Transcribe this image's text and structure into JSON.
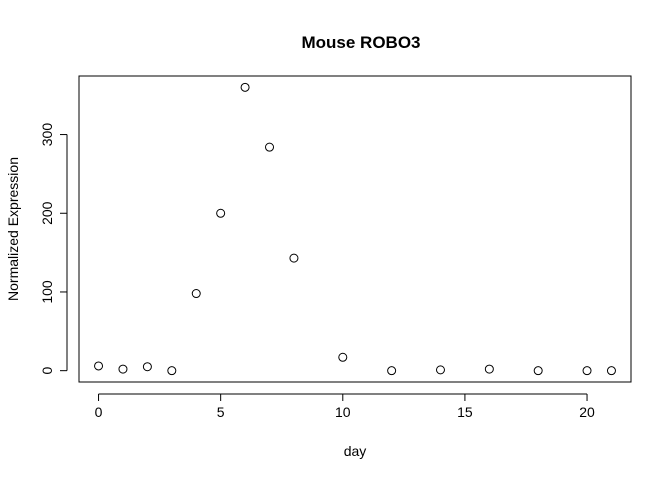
{
  "chart_data": {
    "type": "scatter",
    "title": "Mouse ROBO3",
    "xlabel": "day",
    "ylabel": "Normalized Expression",
    "xlim": [
      -0.8,
      21.8
    ],
    "ylim": [
      -14.4,
      374.4
    ],
    "x_ticks": [
      0,
      5,
      10,
      15,
      20
    ],
    "y_ticks": [
      0,
      100,
      200,
      300
    ],
    "grid": false,
    "marker": "open-circle",
    "color": "#000000",
    "x": [
      0,
      1,
      2,
      3,
      4,
      5,
      6,
      7,
      8,
      10,
      12,
      14,
      16,
      18,
      20,
      21
    ],
    "y": [
      6,
      2,
      5,
      0,
      98,
      200,
      360,
      284,
      143,
      17,
      0,
      1,
      2,
      0,
      0,
      0
    ]
  }
}
